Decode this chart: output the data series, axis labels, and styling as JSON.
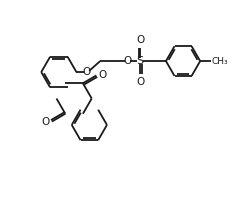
{
  "bg_color": "#ffffff",
  "line_color": "#1a1a1a",
  "line_width": 1.3,
  "figsize": [
    2.46,
    1.97
  ],
  "dpi": 100,
  "xlim": [
    0,
    10
  ],
  "ylim": [
    0,
    8
  ],
  "font_size_atom": 7.5,
  "font_size_ch3": 6.5
}
